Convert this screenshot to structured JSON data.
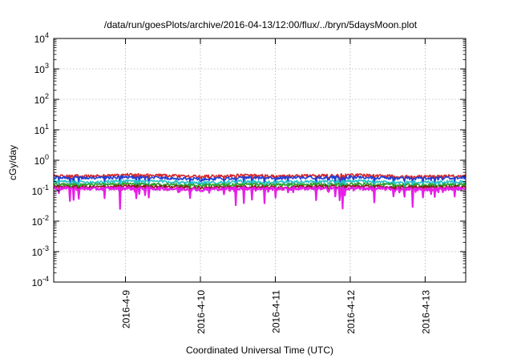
{
  "chart_data": {
    "type": "line",
    "title": "/data/run/goesPlots/archive/2016-04-13/12:00/flux/../bryn/5daysMoon.plot",
    "xlabel": "Coordinated Universal Time (UTC)",
    "ylabel": "cGy/day",
    "yscale": "log",
    "ylim": [
      0.0001,
      10000
    ],
    "xlim": [
      "2016-04-08T01:00",
      "2016-04-13T13:00"
    ],
    "grid": true,
    "x_ticks": [
      "2016-4-9",
      "2016-4-10",
      "2016-4-11",
      "2016-4-12",
      "2016-4-13"
    ],
    "y_ticks": [
      {
        "base": "10",
        "exp": "-4"
      },
      {
        "base": "10",
        "exp": "-3"
      },
      {
        "base": "10",
        "exp": "-2"
      },
      {
        "base": "10",
        "exp": "-1"
      },
      {
        "base": "10",
        "exp": "0"
      },
      {
        "base": "10",
        "exp": "1"
      },
      {
        "base": "10",
        "exp": "2"
      },
      {
        "base": "10",
        "exp": "3"
      },
      {
        "base": "10",
        "exp": "4"
      }
    ],
    "series": [
      {
        "color": "#d62728",
        "values": [
          0.31,
          0.3,
          0.33,
          0.31,
          0.29,
          0.32,
          0.3,
          0.31,
          0.33,
          0.3,
          0.29,
          0.31
        ]
      },
      {
        "color": "#1f3fd6",
        "values": [
          0.27,
          0.26,
          0.28,
          0.26,
          0.24,
          0.27,
          0.26,
          0.27,
          0.28,
          0.26,
          0.25,
          0.27
        ]
      },
      {
        "color": "#27c3c8",
        "values": [
          0.2,
          0.19,
          0.21,
          0.2,
          0.18,
          0.2,
          0.19,
          0.2,
          0.21,
          0.19,
          0.19,
          0.2
        ]
      },
      {
        "color": "#2ca02c",
        "values": [
          0.16,
          0.155,
          0.165,
          0.16,
          0.15,
          0.16,
          0.155,
          0.16,
          0.165,
          0.155,
          0.15,
          0.16
        ]
      },
      {
        "color": "#8b1a1a",
        "values": [
          0.135,
          0.13,
          0.14,
          0.135,
          0.125,
          0.135,
          0.13,
          0.135,
          0.14,
          0.13,
          0.13,
          0.135
        ]
      },
      {
        "color": "#e81ee8",
        "values": [
          0.12,
          0.115,
          0.12,
          0.115,
          0.11,
          0.12,
          0.115,
          0.12,
          0.12,
          0.115,
          0.11,
          0.12
        ]
      }
    ]
  }
}
